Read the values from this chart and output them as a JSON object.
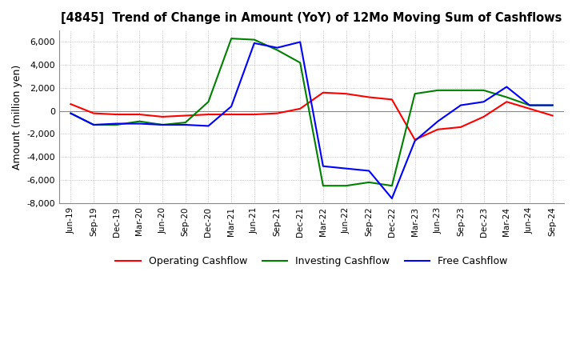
{
  "title": "[4845]  Trend of Change in Amount (YoY) of 12Mo Moving Sum of Cashflows",
  "ylabel": "Amount (million yen)",
  "ylim": [
    -8000,
    7000
  ],
  "yticks": [
    -8000,
    -6000,
    -4000,
    -2000,
    0,
    2000,
    4000,
    6000
  ],
  "x_labels": [
    "Jun-19",
    "Sep-19",
    "Dec-19",
    "Mar-20",
    "Jun-20",
    "Sep-20",
    "Dec-20",
    "Mar-21",
    "Jun-21",
    "Sep-21",
    "Dec-21",
    "Mar-22",
    "Jun-22",
    "Sep-22",
    "Dec-22",
    "Mar-23",
    "Jun-23",
    "Sep-23",
    "Dec-23",
    "Mar-24",
    "Jun-24",
    "Sep-24"
  ],
  "operating": [
    600,
    -200,
    -300,
    -300,
    -500,
    -400,
    -300,
    -300,
    -300,
    -200,
    200,
    1600,
    1500,
    1200,
    1000,
    -2500,
    -1600,
    -1400,
    -500,
    800,
    200,
    -400
  ],
  "investing": [
    -200,
    -1200,
    -1200,
    -900,
    -1200,
    -1000,
    800,
    6300,
    6200,
    5300,
    4200,
    -6500,
    -6500,
    -6200,
    -6500,
    1500,
    1800,
    1800,
    1800,
    1200,
    500,
    500
  ],
  "free": [
    -200,
    -1200,
    -1100,
    -1100,
    -1200,
    -1200,
    -1300,
    400,
    5900,
    5500,
    6000,
    -4800,
    -5000,
    -5200,
    -7600,
    -2600,
    -900,
    500,
    800,
    2100,
    500,
    500
  ],
  "colors": {
    "operating": "#ff0000",
    "investing": "#008000",
    "free": "#0000ff"
  },
  "legend_labels": [
    "Operating Cashflow",
    "Investing Cashflow",
    "Free Cashflow"
  ],
  "background_color": "#ffffff",
  "grid_color": "#b0b0b0",
  "grid_style": ":"
}
